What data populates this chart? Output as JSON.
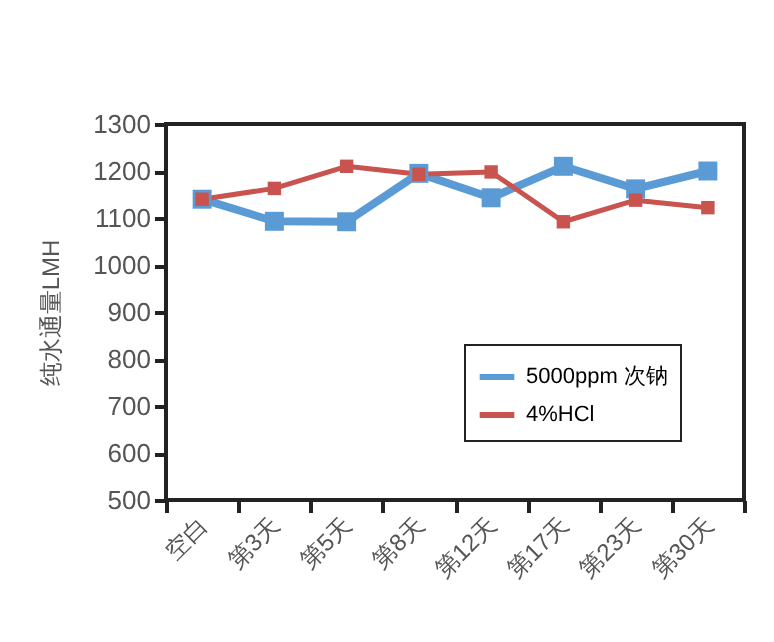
{
  "chart_data": {
    "type": "line",
    "ylabel": "纯水通量LMH",
    "categories": [
      "空白",
      "第3天",
      "第5天",
      "第8天",
      "第12天",
      "第17天",
      "第23天",
      "第30天"
    ],
    "series": [
      {
        "name": "5000ppm 次钠",
        "color": "#5b9bd5",
        "values": [
          1140,
          1093,
          1092,
          1195,
          1143,
          1210,
          1162,
          1200
        ]
      },
      {
        "name": "4%HCl",
        "color": "#c9534f",
        "values": [
          1140,
          1163,
          1210,
          1193,
          1198,
          1092,
          1138,
          1122
        ]
      }
    ],
    "ylim": [
      500,
      1300
    ],
    "yticks": [
      500,
      600,
      700,
      800,
      900,
      1000,
      1100,
      1200,
      1300
    ],
    "grid": false,
    "legend": "right",
    "marker": "square",
    "line_style": "solid"
  }
}
